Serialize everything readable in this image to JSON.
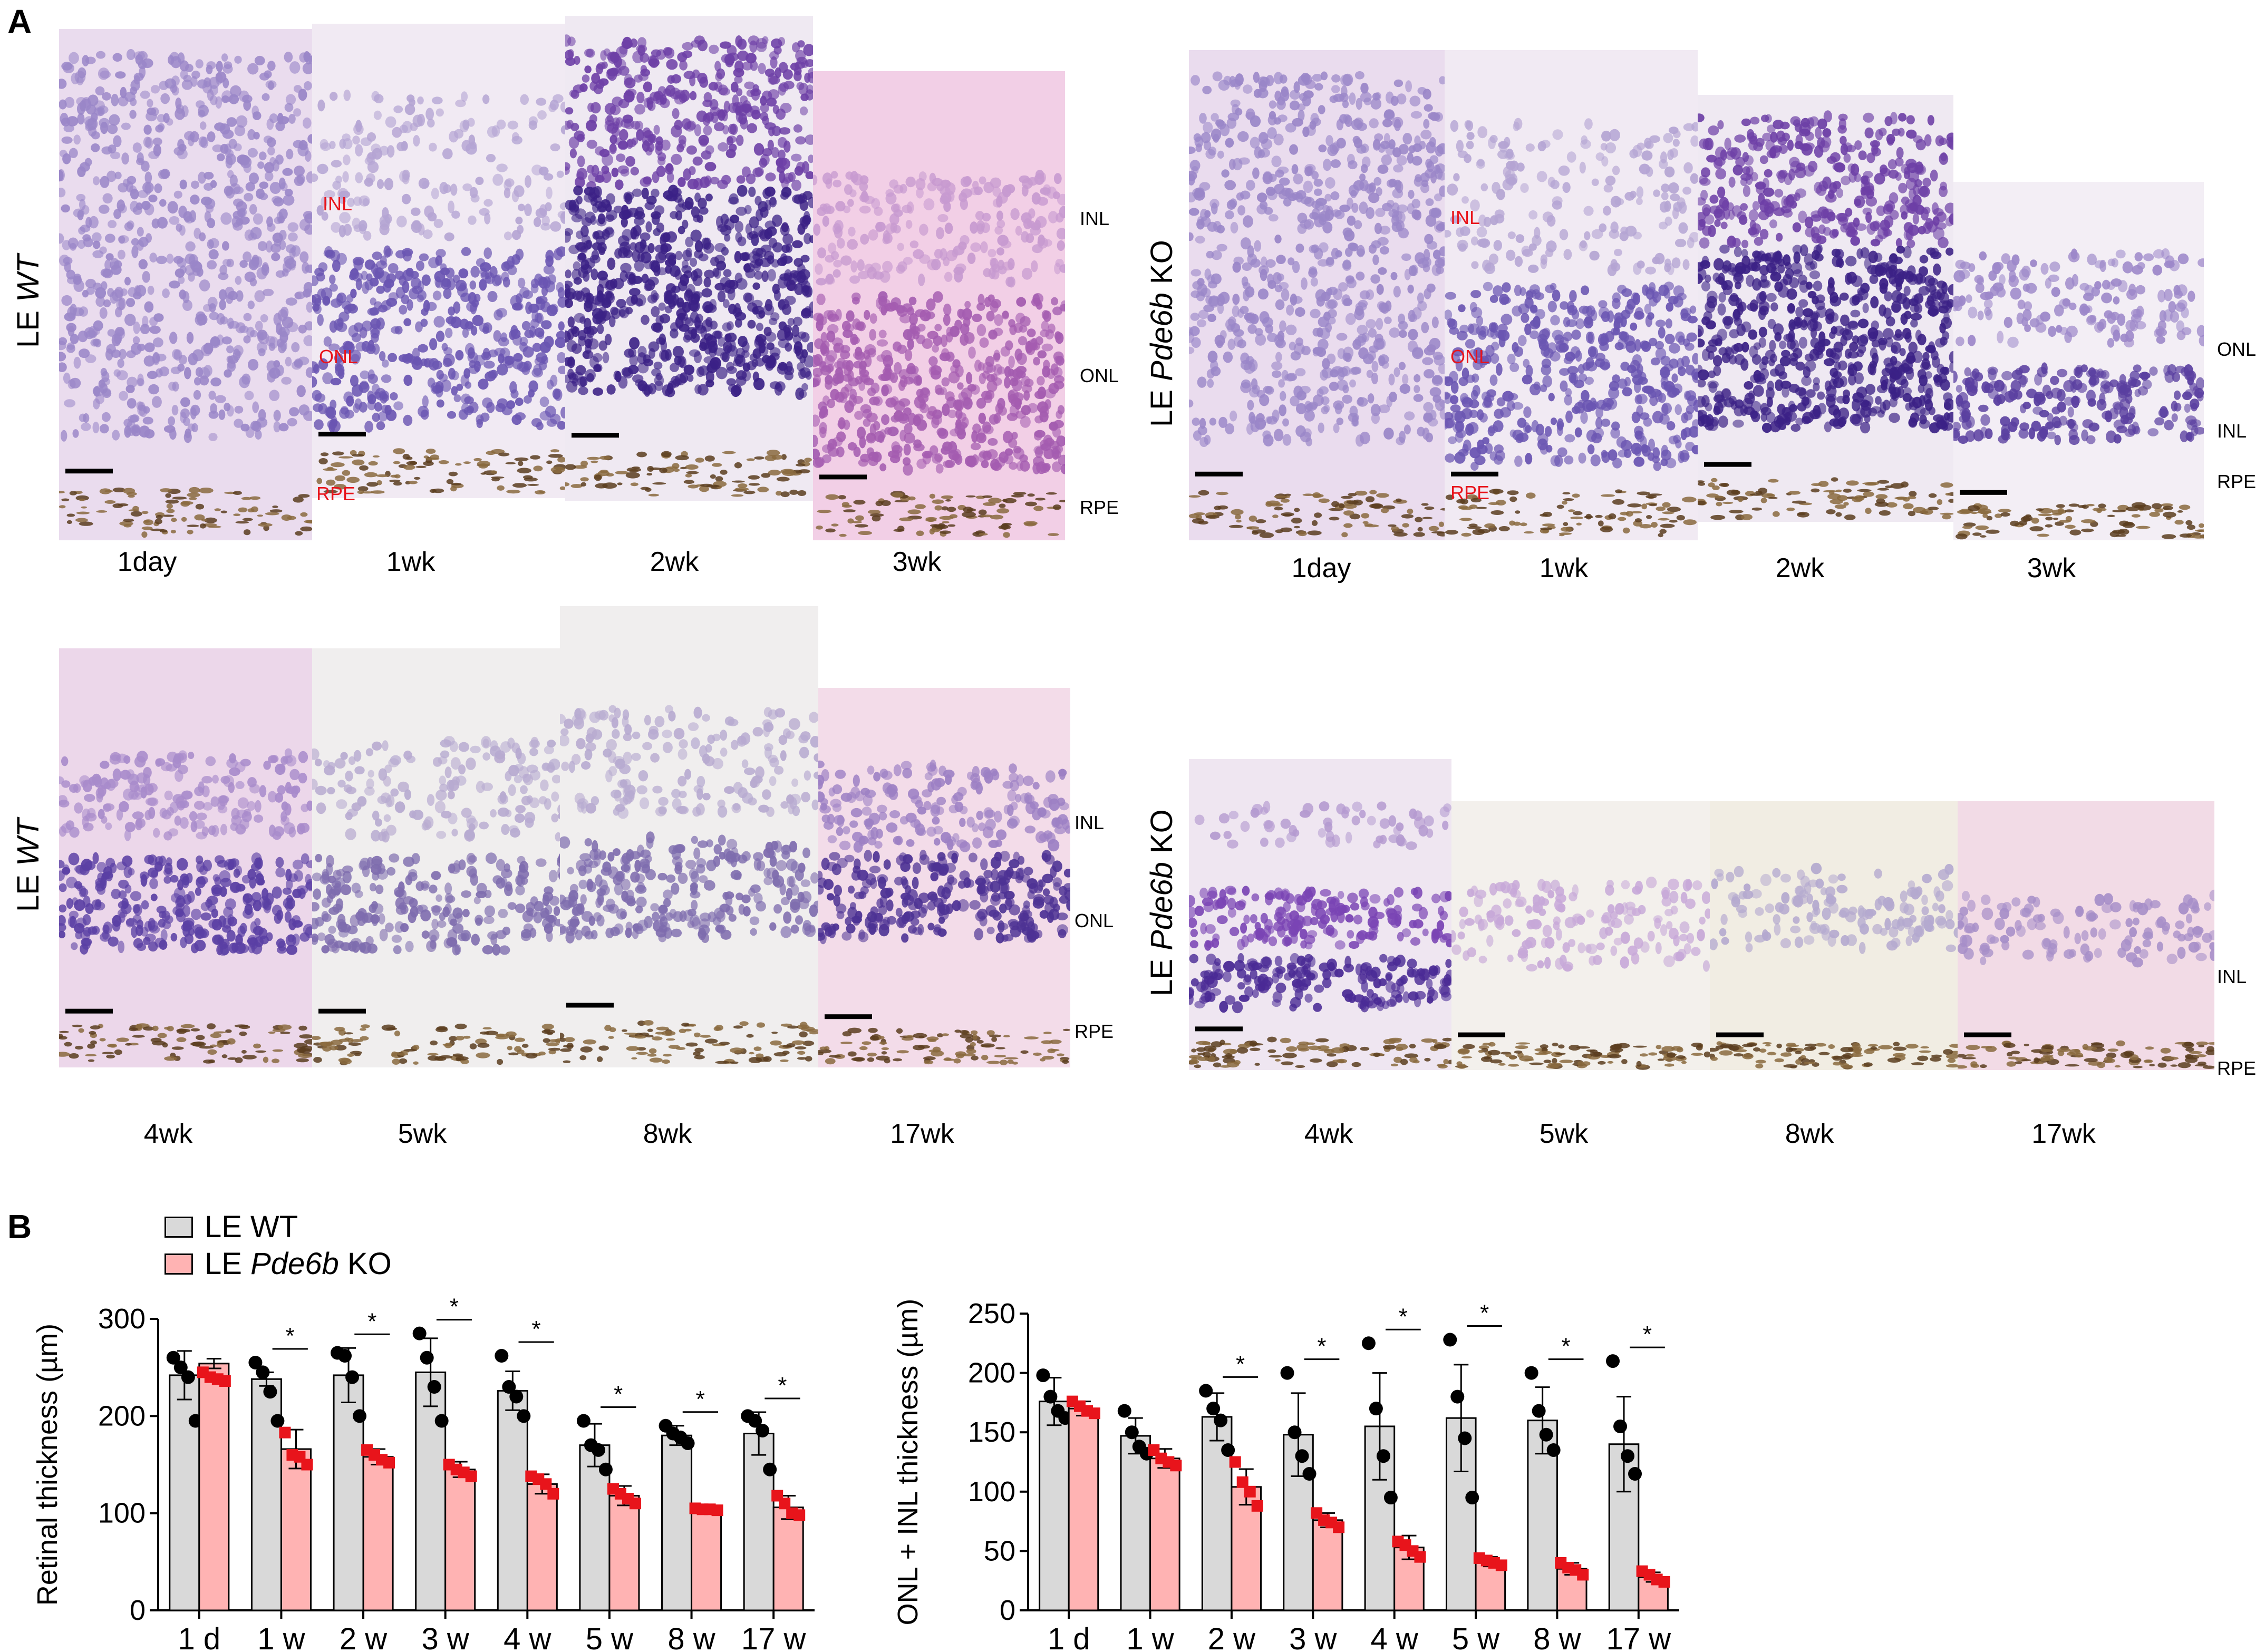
{
  "panel_a": {
    "letter": "A",
    "groups": [
      {
        "row_label_prefix": "LE ",
        "row_label_italic": "WT",
        "row_label_suffix": "",
        "time_labels": [
          "1day",
          "1wk",
          "2wk",
          "3wk"
        ],
        "red_labels": [
          "INL",
          "ONL",
          "RPE"
        ],
        "side_labels": [
          "INL",
          "ONL",
          "RPE"
        ]
      },
      {
        "row_label_prefix": "LE ",
        "row_label_italic": "Pde6b",
        "row_label_suffix": " KO",
        "time_labels": [
          "1day",
          "1wk",
          "2wk",
          "3wk"
        ],
        "red_labels": [
          "INL",
          "ONL",
          "RPE"
        ],
        "side_labels": [
          "ONL",
          "INL",
          "RPE"
        ]
      },
      {
        "row_label_prefix": "LE ",
        "row_label_italic": "WT",
        "row_label_suffix": "",
        "time_labels": [
          "4wk",
          "5wk",
          "8wk",
          "17wk"
        ],
        "side_labels": [
          "INL",
          "ONL",
          "RPE"
        ]
      },
      {
        "row_label_prefix": "LE ",
        "row_label_italic": "Pde6b",
        "row_label_suffix": " KO",
        "time_labels": [
          "4wk",
          "5wk",
          "8wk",
          "17wk"
        ],
        "side_labels": [
          "INL",
          "RPE"
        ]
      }
    ]
  },
  "panel_b": {
    "letter": "B",
    "legend": [
      {
        "prefix": "LE WT",
        "italic": "",
        "suffix": "",
        "color": "#d9d9d9"
      },
      {
        "prefix": "LE ",
        "italic": "Pde6b",
        "suffix": " KO",
        "color": "#ffb3b3"
      }
    ],
    "significance_mark": "*"
  },
  "colors": {
    "wt_bar": "#d9d9d9",
    "ko_bar": "#ffb3b3",
    "wt_point": "#000000",
    "ko_point": "#e8141b",
    "stain_nucleus": "#5b3a9e",
    "stain_background": "#e9d3ea"
  },
  "chart_data": [
    {
      "type": "bar",
      "categories": [
        "1 d",
        "1 w",
        "2 w",
        "3 w",
        "4 w",
        "5 w",
        "8 w",
        "17 w"
      ],
      "ylabel": "Retinal thickness (µm)",
      "ylim": [
        0,
        300
      ],
      "yticks": [
        0,
        100,
        200,
        300
      ],
      "series": [
        {
          "name": "LE WT",
          "values": [
            242,
            238,
            242,
            245,
            226,
            170,
            180,
            182
          ],
          "errors": [
            25,
            7,
            28,
            35,
            20,
            22,
            10,
            22
          ]
        },
        {
          "name": "LE Pde6b KO",
          "values": [
            254,
            166,
            158,
            145,
            130,
            118,
            104,
            106
          ],
          "errors": [
            5,
            20,
            8,
            8,
            10,
            10,
            2,
            12
          ]
        }
      ],
      "points": [
        [
          [
            260,
            250,
            240,
            195
          ],
          [
            245,
            240,
            238,
            236
          ]
        ],
        [
          [
            255,
            245,
            225,
            195
          ],
          [
            183,
            160,
            158,
            150
          ]
        ],
        [
          [
            265,
            262,
            240,
            200
          ],
          [
            165,
            160,
            155,
            152
          ]
        ],
        [
          [
            285,
            260,
            230,
            195
          ],
          [
            150,
            145,
            142,
            138
          ]
        ],
        [
          [
            262,
            230,
            220,
            200
          ],
          [
            138,
            135,
            130,
            120
          ]
        ],
        [
          [
            195,
            170,
            165,
            145
          ],
          [
            125,
            120,
            115,
            110
          ]
        ],
        [
          [
            190,
            182,
            178,
            172
          ],
          [
            105,
            104,
            104,
            103
          ]
        ],
        [
          [
            200,
            195,
            185,
            145
          ],
          [
            118,
            110,
            100,
            98
          ]
        ]
      ],
      "significance": [
        false,
        true,
        true,
        true,
        true,
        true,
        true,
        true
      ]
    },
    {
      "type": "bar",
      "categories": [
        "1 d",
        "1 w",
        "2 w",
        "3 w",
        "4 w",
        "5 w",
        "8 w",
        "17 w"
      ],
      "ylabel": "ONL + INL thickness (µm)",
      "ylim": [
        0,
        250
      ],
      "yticks": [
        0,
        50,
        100,
        150,
        200,
        250
      ],
      "series": [
        {
          "name": "LE WT",
          "values": [
            176,
            147,
            163,
            148,
            155,
            162,
            160,
            140
          ],
          "errors": [
            20,
            15,
            20,
            35,
            45,
            45,
            28,
            40
          ]
        },
        {
          "name": "LE Pde6b KO",
          "values": [
            170,
            128,
            104,
            76,
            53,
            41,
            35,
            28
          ],
          "errors": [
            6,
            8,
            15,
            6,
            10,
            4,
            5,
            4
          ]
        }
      ],
      "points": [
        [
          [
            198,
            180,
            168,
            162
          ],
          [
            176,
            172,
            168,
            166
          ]
        ],
        [
          [
            168,
            150,
            138,
            132
          ],
          [
            135,
            128,
            125,
            122
          ]
        ],
        [
          [
            185,
            170,
            160,
            135
          ],
          [
            125,
            108,
            100,
            88
          ]
        ],
        [
          [
            200,
            150,
            130,
            115
          ],
          [
            82,
            76,
            74,
            70
          ]
        ],
        [
          [
            225,
            170,
            130,
            95
          ],
          [
            58,
            55,
            50,
            45
          ]
        ],
        [
          [
            228,
            180,
            145,
            95
          ],
          [
            44,
            42,
            40,
            38
          ]
        ],
        [
          [
            200,
            168,
            148,
            135
          ],
          [
            40,
            36,
            34,
            30
          ]
        ],
        [
          [
            210,
            155,
            130,
            115
          ],
          [
            33,
            30,
            26,
            24
          ]
        ]
      ],
      "significance": [
        false,
        false,
        true,
        true,
        true,
        true,
        true,
        true
      ]
    }
  ]
}
